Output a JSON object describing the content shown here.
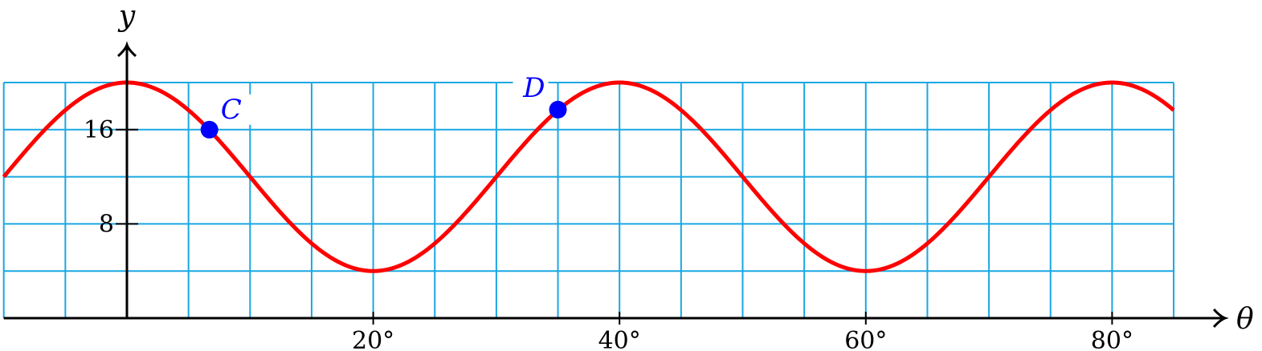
{
  "chart_data": {
    "type": "line",
    "xlabel": "θ",
    "ylabel": "y",
    "x_tick_labels": [
      "20°",
      "40°",
      "60°",
      "80°"
    ],
    "y_tick_labels": [
      "8",
      "16"
    ],
    "xlim": [
      -10,
      85
    ],
    "ylim": [
      0,
      20
    ],
    "grid": true,
    "grid_step": {
      "x": 5,
      "y": 4
    },
    "series": [
      {
        "color": "#ff0000",
        "function": "y = 12 + 8*cos(9*θ°)",
        "x_range": [
          -10,
          85
        ]
      }
    ],
    "points": [
      {
        "label": "C",
        "x": 6.7,
        "y": 16,
        "color": "#0000ff"
      },
      {
        "label": "D",
        "x": 35,
        "y": 17.7,
        "color": "#0000ff"
      }
    ],
    "colors": {
      "curve": "#ff0000",
      "grid": "#1aa7e3",
      "points": "#0000ff"
    }
  }
}
